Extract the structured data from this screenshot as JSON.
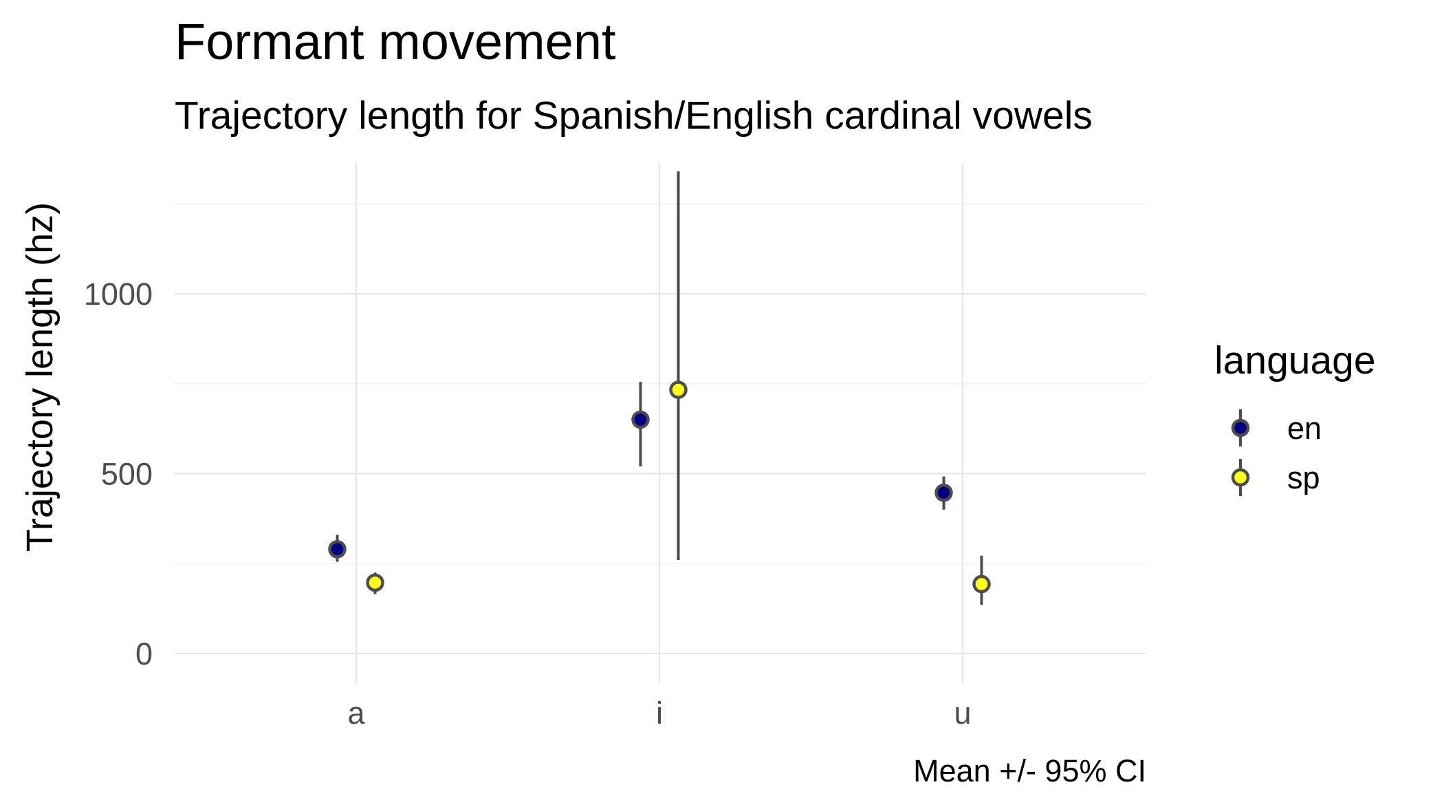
{
  "chart_data": {
    "type": "scatter",
    "title": "Formant movement",
    "subtitle": "Trajectory length for Spanish/English cardinal vowels",
    "xlabel": "",
    "ylabel": "Trajectory length (hz)",
    "caption": "Mean +/- 95% CI",
    "categories": [
      "a",
      "i",
      "u"
    ],
    "ylim": [
      -70,
      1370
    ],
    "yticks": [
      0,
      500,
      1000
    ],
    "grid": true,
    "legend": {
      "title": "language",
      "position": "right"
    },
    "series": [
      {
        "name": "en",
        "color": "#000080",
        "points": [
          {
            "x": "a",
            "y": 290,
            "ymin": 255,
            "ymax": 330
          },
          {
            "x": "i",
            "y": 650,
            "ymin": 520,
            "ymax": 755
          },
          {
            "x": "u",
            "y": 447,
            "ymin": 400,
            "ymax": 492
          }
        ]
      },
      {
        "name": "sp",
        "color": "#ffff1a",
        "points": [
          {
            "x": "a",
            "y": 197,
            "ymin": 165,
            "ymax": 225
          },
          {
            "x": "i",
            "y": 733,
            "ymin": 260,
            "ymax": 1340
          },
          {
            "x": "u",
            "y": 193,
            "ymin": 135,
            "ymax": 272
          }
        ]
      }
    ],
    "errorbar_color": "#4d4d4d"
  }
}
